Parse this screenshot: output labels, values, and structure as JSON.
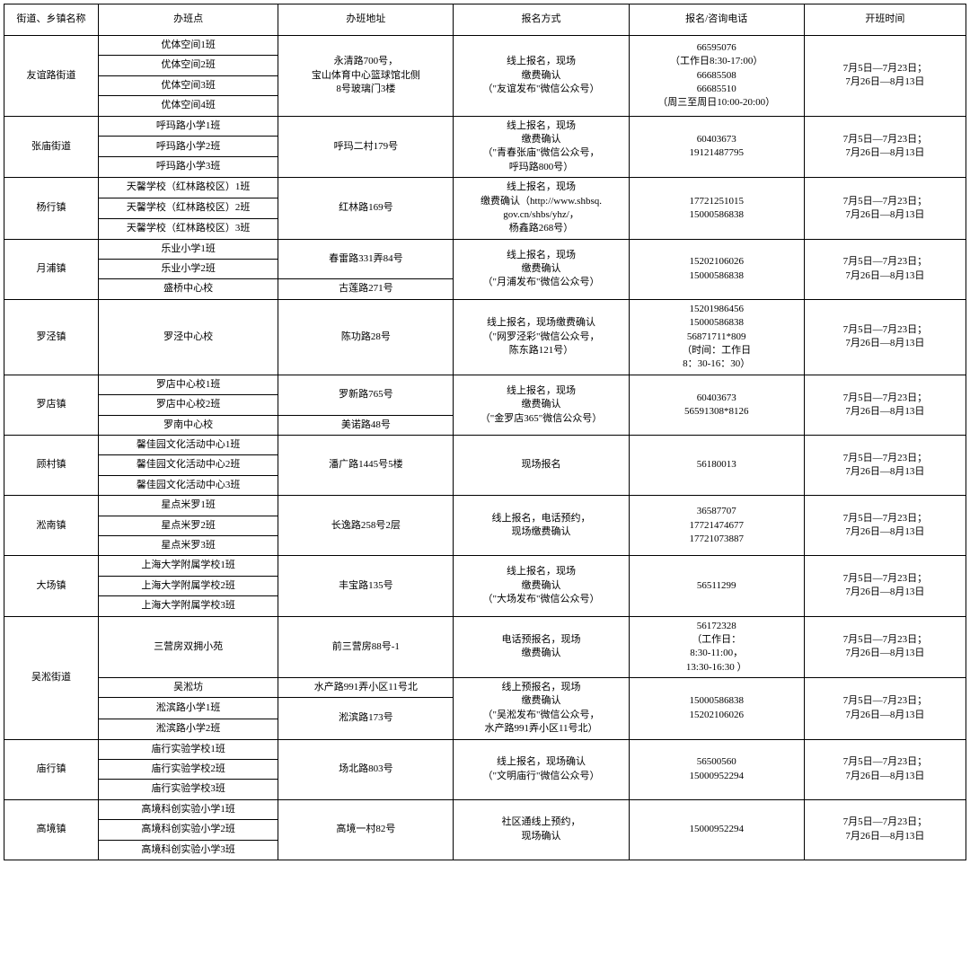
{
  "headers": {
    "district": "街道、乡镇名称",
    "class": "办班点",
    "address": "办班地址",
    "register": "报名方式",
    "phone": "报名/咨询电话",
    "time": "开班时间"
  },
  "common_time": "7月5日—7月23日；\n7月26日—8月13日",
  "districts": {
    "youyi": {
      "name": "友谊路街道",
      "classes": [
        "优体空间1班",
        "优体空间2班",
        "优体空间3班",
        "优体空间4班"
      ],
      "address": "永清路700号，\n宝山体育中心篮球馆北侧\n8号玻璃门3楼",
      "register": "线上报名，现场\n缴费确认\n（\"友谊发布\"微信公众号）",
      "phone": "66595076\n（工作日8:30-17:00）\n66685508\n66685510\n（周三至周日10:00-20:00）"
    },
    "zhangmiao": {
      "name": "张庙街道",
      "classes": [
        "呼玛路小学1班",
        "呼玛路小学2班",
        "呼玛路小学3班"
      ],
      "address": "呼玛二村179号",
      "register": "线上报名，现场\n缴费确认\n（\"青春张庙\"微信公众号，\n呼玛路800号）",
      "phone": "60403673\n19121487795"
    },
    "yangxing": {
      "name": "杨行镇",
      "classes": [
        "天馨学校（红林路校区）1班",
        "天馨学校（红林路校区）2班",
        "天馨学校（红林路校区）3班"
      ],
      "address": "红林路169号",
      "register": "线上报名，现场\n缴费确认（http://www.shbsq.\ngov.cn/shbs/yhz/，\n杨鑫路268号）",
      "phone": "17721251015\n15000586838"
    },
    "yuepu": {
      "name": "月浦镇",
      "classes": [
        "乐业小学1班",
        "乐业小学2班",
        "盛桥中心校"
      ],
      "address1": "春雷路331弄84号",
      "address2": "古莲路271号",
      "register": "线上报名，现场\n缴费确认\n（\"月浦发布\"微信公众号）",
      "phone": "15202106026\n15000586838"
    },
    "luojing": {
      "name": "罗泾镇",
      "classes": [
        "罗泾中心校"
      ],
      "address": "陈功路28号",
      "register": "线上报名，现场缴费确认\n（\"网罗泾彩\"微信公众号，\n陈东路121号）",
      "phone": "15201986456\n15000586838\n56871711*809\n（时间：工作日\n8：30-16：30）"
    },
    "luodian": {
      "name": "罗店镇",
      "classes": [
        "罗店中心校1班",
        "罗店中心校2班",
        "罗南中心校"
      ],
      "address1": "罗新路765号",
      "address2": "美诺路48号",
      "register": "线上报名，现场\n缴费确认\n（\"金罗店365\"微信公众号）",
      "phone": "60403673\n56591308*8126"
    },
    "gucun": {
      "name": "顾村镇",
      "classes": [
        "馨佳园文化活动中心1班",
        "馨佳园文化活动中心2班",
        "馨佳园文化活动中心3班"
      ],
      "address": "潘广路1445号5楼",
      "register": "现场报名",
      "phone": "56180013"
    },
    "songnan": {
      "name": "淞南镇",
      "classes": [
        "星点米罗1班",
        "星点米罗2班",
        "星点米罗3班"
      ],
      "address": "长逸路258号2层",
      "register": "线上报名，电话预约，\n现场缴费确认",
      "phone": "36587707\n17721474677\n17721073887"
    },
    "dachang": {
      "name": "大场镇",
      "classes": [
        "上海大学附属学校1班",
        "上海大学附属学校2班",
        "上海大学附属学校3班"
      ],
      "address": "丰宝路135号",
      "register": "线上报名，现场\n缴费确认\n（\"大场发布\"微信公众号）",
      "phone": "56511299"
    },
    "wusong": {
      "name": "吴淞街道",
      "classes": [
        "三营房双拥小苑",
        "吴淞坊",
        "淞滨路小学1班",
        "淞滨路小学2班"
      ],
      "address1": "前三营房88号-1",
      "address2": "水产路991弄小区11号北",
      "address3": "淞滨路173号",
      "register1": "电话预报名，现场\n缴费确认",
      "register2": "线上预报名，现场\n缴费确认\n（\"吴淞发布\"微信公众号，\n水产路991弄小区11号北）",
      "phone1": "56172328\n（工作日：\n8:30-11:00，\n13:30-16:30 ）",
      "phone2": "15000586838\n15202106026"
    },
    "miaohang": {
      "name": "庙行镇",
      "classes": [
        "庙行实验学校1班",
        "庙行实验学校2班",
        "庙行实验学校3班"
      ],
      "address": "场北路803号",
      "register": "线上报名，现场确认\n（\"文明庙行\"微信公众号）",
      "phone": "56500560\n15000952294"
    },
    "gaojing": {
      "name": "高境镇",
      "classes": [
        "高境科创实验小学1班",
        "高境科创实验小学2班",
        "高境科创实验小学3班"
      ],
      "address": "高境一村82号",
      "register": "社区通线上预约，\n现场确认",
      "phone": "15000952294"
    }
  }
}
